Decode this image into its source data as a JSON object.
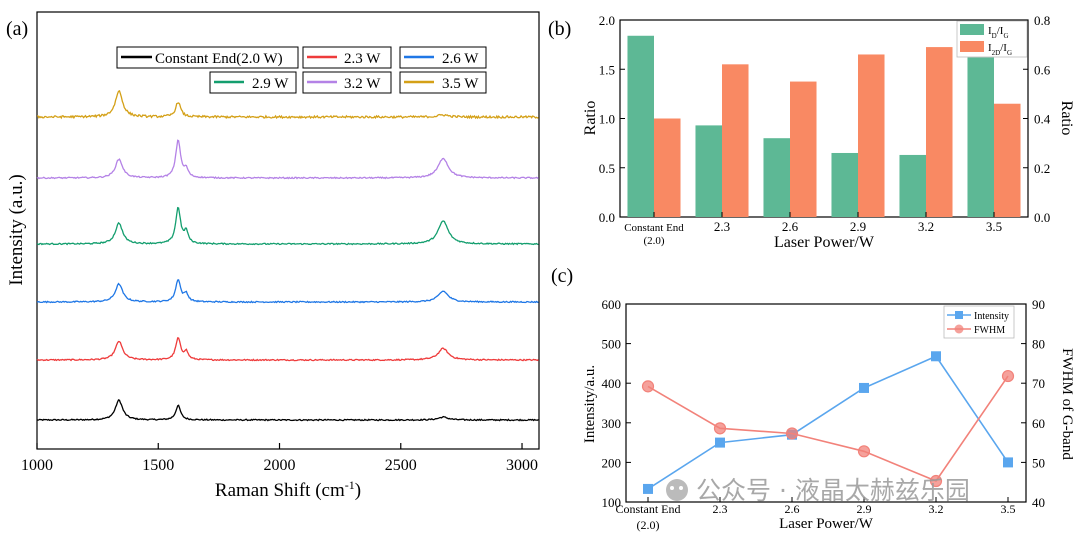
{
  "chart_data": [
    {
      "panel": "(a)",
      "type": "line",
      "title": "",
      "xlabel": "Raman Shift (cm",
      "xlabel_sup": "-1",
      "xlabel_end": ")",
      "ylabel": "Intensity (a.u.)",
      "xlim": [
        1000,
        3070
      ],
      "xticks": [
        "1000",
        "1500",
        "2000",
        "2500",
        "3000"
      ],
      "xtick_values": [
        1000,
        1500,
        2000,
        2500,
        3000
      ],
      "legend_position": "top",
      "series": [
        {
          "name": "Constant End(2.0 W)",
          "color": "#000000",
          "D": 0.55,
          "G": 0.4,
          "G2": 0.0,
          "D2": 0.08,
          "noise": 0.035
        },
        {
          "name": "2.3 W",
          "color": "#ee3b3b",
          "D": 0.52,
          "G": 0.6,
          "G2": 0.22,
          "D2": 0.32,
          "noise": 0.035
        },
        {
          "name": "2.6 W",
          "color": "#1f77e6",
          "D": 0.5,
          "G": 0.62,
          "G2": 0.22,
          "D2": 0.3,
          "noise": 0.035
        },
        {
          "name": "2.9 W",
          "color": "#139e6e",
          "D": 0.58,
          "G": 1.0,
          "G2": 0.32,
          "D2": 0.64,
          "noise": 0.035
        },
        {
          "name": "3.2 W",
          "color": "#b482e6",
          "D": 0.52,
          "G": 1.05,
          "G2": 0.22,
          "D2": 0.55,
          "noise": 0.035
        },
        {
          "name": "3.5 W",
          "color": "#d4a017",
          "D": 0.72,
          "G": 0.42,
          "G2": 0.0,
          "D2": 0.06,
          "noise": 0.06
        }
      ]
    },
    {
      "panel": "(b)",
      "type": "bar",
      "categories": [
        "Constant End",
        "2.3",
        "2.6",
        "2.9",
        "3.2",
        "3.5"
      ],
      "category_sublabel": "(2.0)",
      "xlabel": "Laser Power/W",
      "ylabel_left": "Ratio",
      "ylabel_right": "Ratio",
      "ylim_left": [
        0,
        2.0
      ],
      "ylim_right": [
        0,
        0.8
      ],
      "yticks_left": [
        "0.0",
        "0.5",
        "1.0",
        "1.5",
        "2.0"
      ],
      "yticks_right": [
        "0.0",
        "0.2",
        "0.4",
        "0.6",
        "0.8"
      ],
      "legend_position": "top-right",
      "series": [
        {
          "name_main": "I",
          "name_sub1": "D",
          "name_mid": "/I",
          "name_sub2": "G",
          "axis": "left",
          "color": "#5db895",
          "values": [
            1.84,
            0.93,
            0.8,
            0.65,
            0.63,
            1.62
          ]
        },
        {
          "name_main": "I",
          "name_sub1": "2D",
          "name_mid": "/I",
          "name_sub2": "G",
          "axis": "right",
          "color": "#f98963",
          "values": [
            0.4,
            0.62,
            0.55,
            0.66,
            0.69,
            0.46
          ]
        }
      ]
    },
    {
      "panel": "(c)",
      "type": "line",
      "categories": [
        "Constant End",
        "2.3",
        "2.6",
        "2.9",
        "3.2",
        "3.5"
      ],
      "category_sublabel": "(2.0)",
      "xlabel": "Laser Power/W",
      "ylabel_left": "Intensity/a.u.",
      "ylabel_right": "FWHM of G-band",
      "ylim_left": [
        100,
        600
      ],
      "ylim_right": [
        40,
        90
      ],
      "yticks_left": [
        "100",
        "200",
        "300",
        "400",
        "500",
        "600"
      ],
      "yticks_right": [
        "40",
        "50",
        "60",
        "70",
        "80",
        "90"
      ],
      "legend_position": "top-right",
      "series": [
        {
          "name": "Intensity",
          "axis": "left",
          "color": "#5aa6ee",
          "marker": "square",
          "values": [
            133,
            250,
            270,
            388,
            468,
            200
          ]
        },
        {
          "name": "FWHM",
          "axis": "right",
          "color": "#f2827a",
          "marker": "circle",
          "values": [
            69.2,
            58.6,
            57.3,
            52.8,
            45.3,
            71.8
          ]
        }
      ]
    }
  ],
  "watermark": "公众号 · 液晶太赫兹乐园"
}
